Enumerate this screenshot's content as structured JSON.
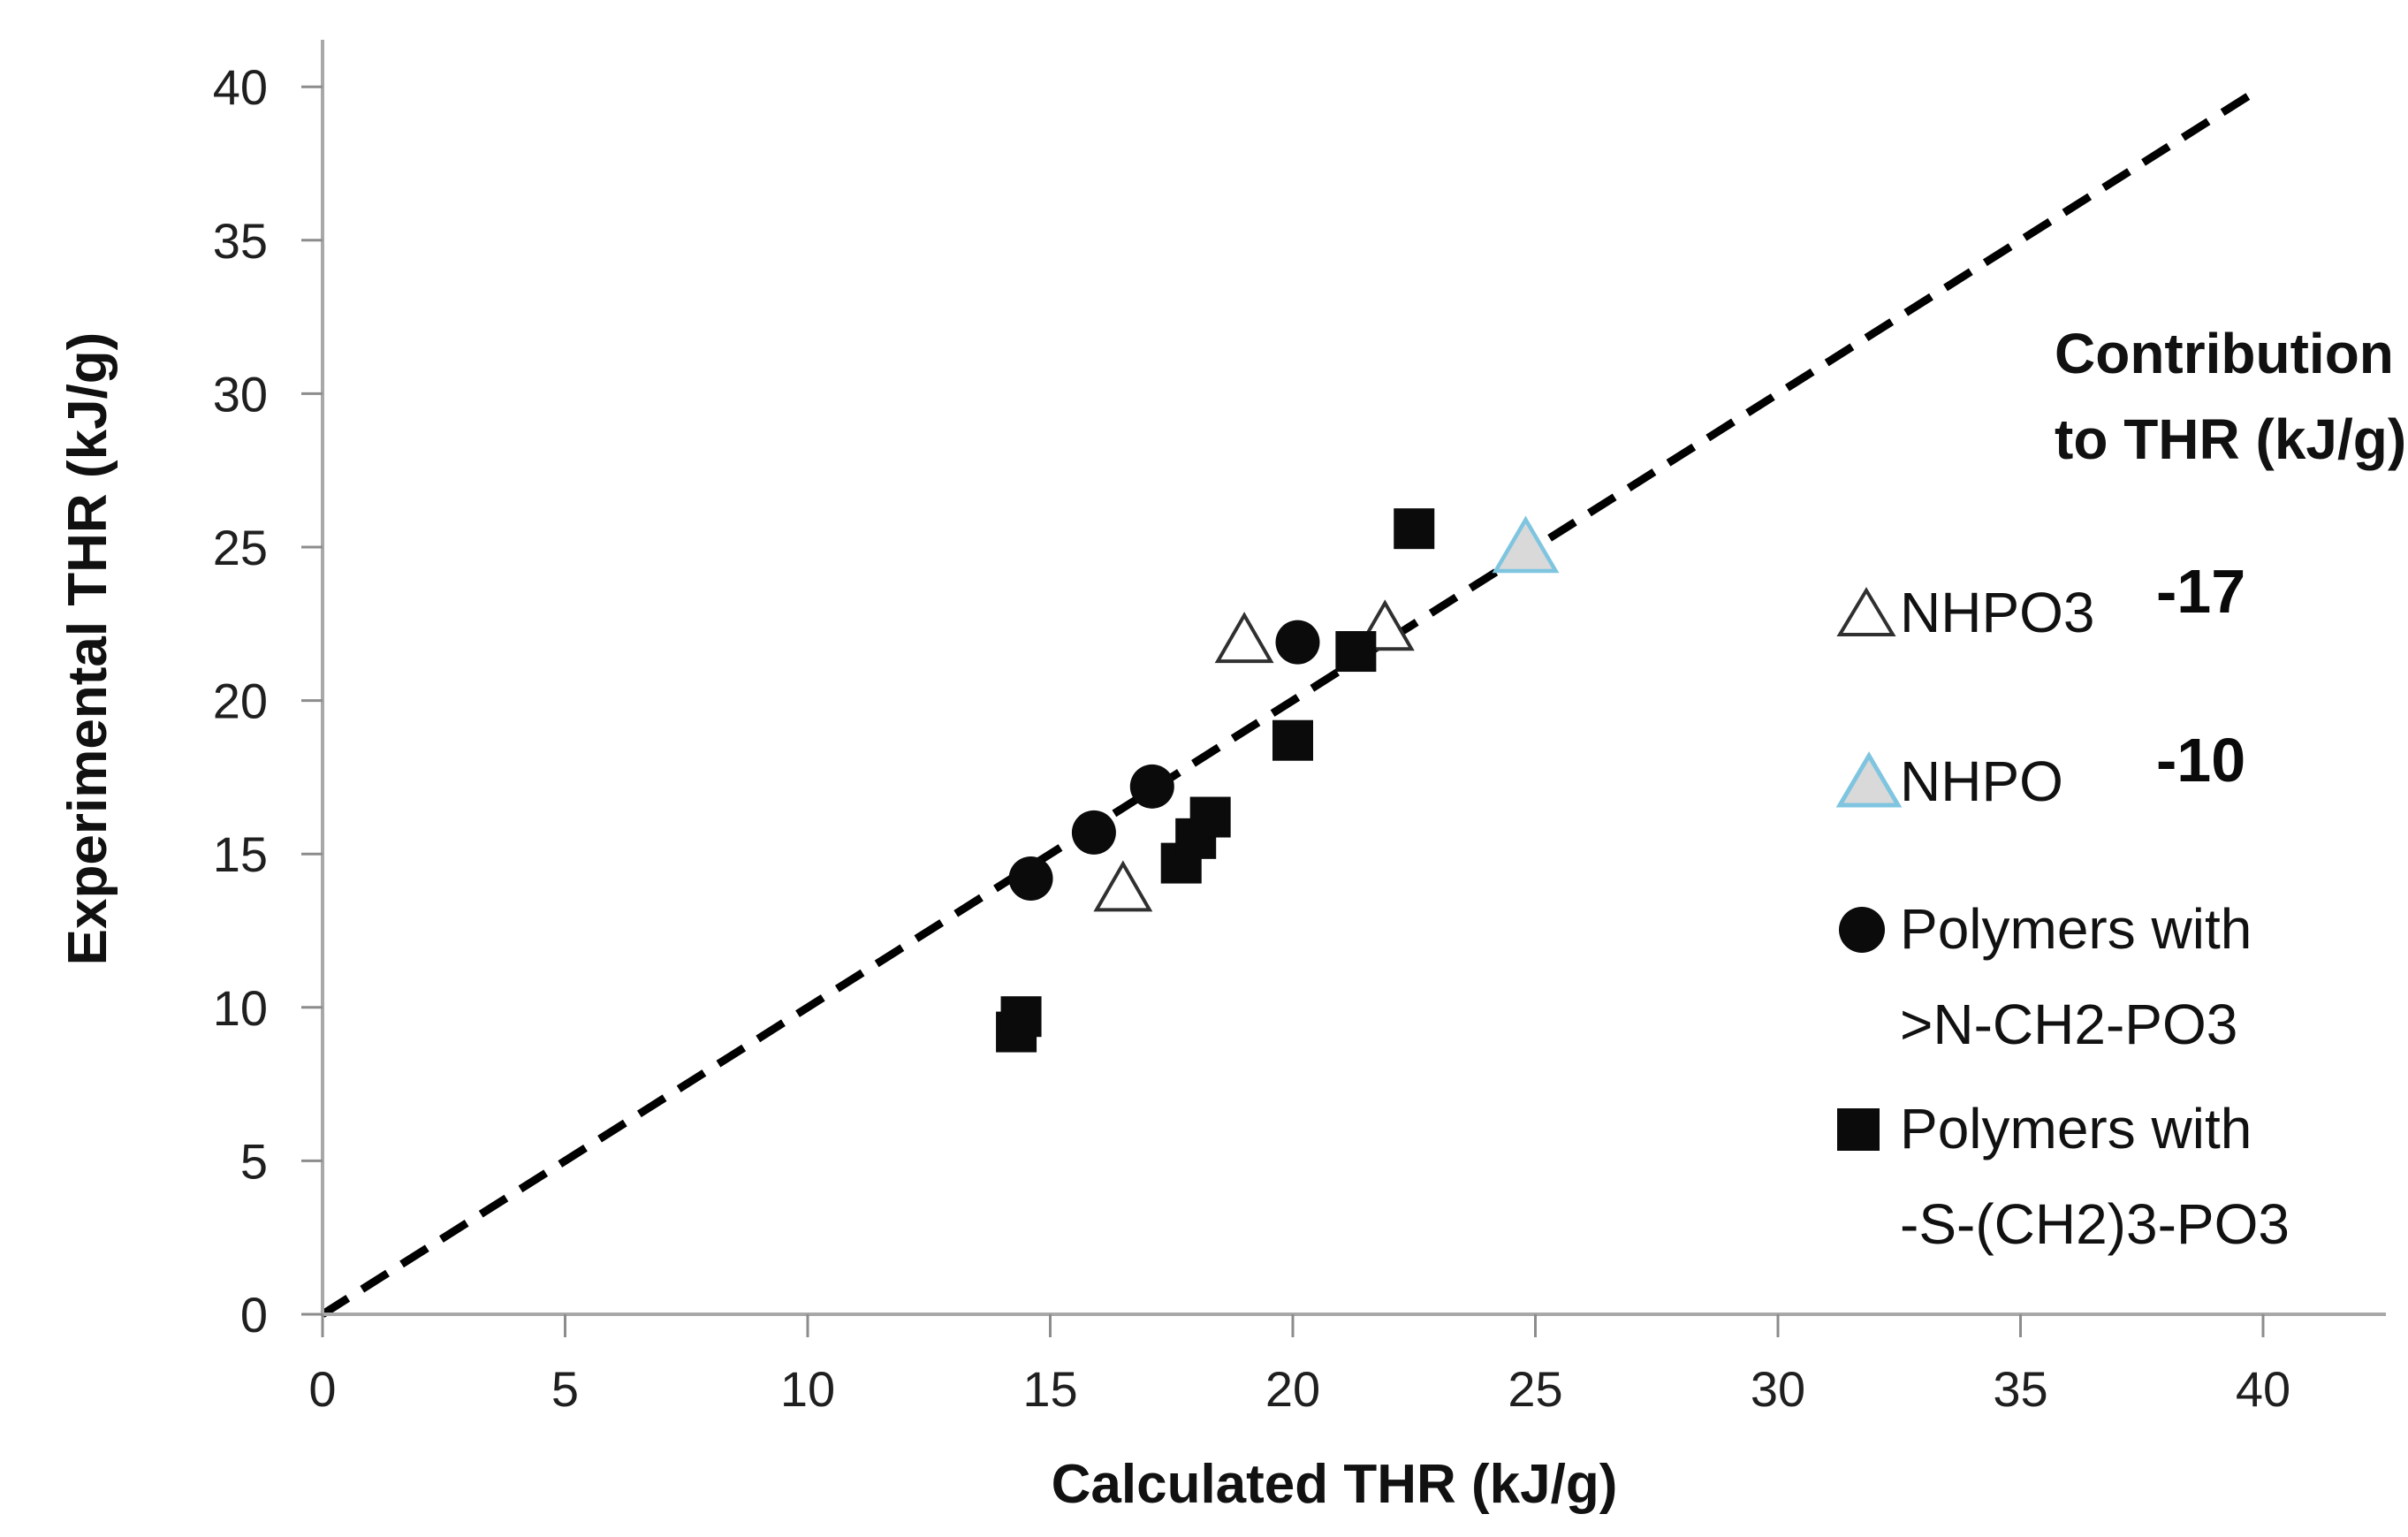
{
  "figure": {
    "x_axis_title": "Calculated THR (kJ/g)",
    "y_axis_title": "Experimental THR (kJ/g)"
  },
  "legend": {
    "header_line1": "Contribution",
    "header_line2": "to THR (kJ/g)",
    "items": [
      {
        "marker": "triangle-open",
        "label": "NHPO3",
        "value": "-17"
      },
      {
        "marker": "triangle-filled",
        "label": "NHPO",
        "value": "-10"
      },
      {
        "marker": "circle",
        "label_line1": "Polymers with",
        "label_line2": ">N-CH2-PO3"
      },
      {
        "marker": "square",
        "label_line1": "Polymers with",
        "label_line2": "-S-(CH2)3-PO3"
      }
    ]
  },
  "chart_data": {
    "type": "scatter",
    "title": "",
    "xlabel": "Calculated THR (kJ/g)",
    "ylabel": "Experimental THR (kJ/g)",
    "xlim": [
      0,
      42.5
    ],
    "ylim": [
      0,
      41.5
    ],
    "x_ticks": [
      0,
      5,
      10,
      15,
      20,
      25,
      30,
      35,
      40
    ],
    "y_ticks": [
      0,
      5,
      10,
      15,
      20,
      25,
      30,
      35,
      40
    ],
    "grid": false,
    "legend_position": "right",
    "identity_line": {
      "style": "dashed",
      "from": 0,
      "to": 39.7,
      "comment": "y = x reference line"
    },
    "series": [
      {
        "name": "NHPO3",
        "marker": "triangle-open",
        "contribution_to_THR_kJ_per_g": -17,
        "points": [
          [
            16.5,
            13.9
          ],
          [
            19.0,
            22.0
          ],
          [
            21.9,
            22.4
          ]
        ]
      },
      {
        "name": "NHPO",
        "marker": "triangle-filled",
        "contribution_to_THR_kJ_per_g": -10,
        "points": [
          [
            24.8,
            25.0
          ]
        ]
      },
      {
        "name": "Polymers with >N-CH2-PO3",
        "marker": "circle",
        "points": [
          [
            14.6,
            14.2
          ],
          [
            15.9,
            15.7
          ],
          [
            17.1,
            17.2
          ],
          [
            20.1,
            21.9
          ]
        ]
      },
      {
        "name": "Polymers with -S-(CH2)3-PO3",
        "marker": "square",
        "points": [
          [
            14.3,
            9.2
          ],
          [
            14.4,
            9.7
          ],
          [
            17.7,
            14.7
          ],
          [
            18.0,
            15.5
          ],
          [
            18.3,
            16.2
          ],
          [
            20.0,
            18.7
          ],
          [
            21.3,
            21.6
          ],
          [
            22.5,
            25.6
          ]
        ]
      }
    ]
  },
  "colors": {
    "marker_black": "#0b0b0b",
    "triangle_open_stroke": "#303030",
    "triangle_open_fill": "#ffffff",
    "nhpo_fill": "#d9d9d9",
    "nhpo_stroke": "#7fc5e0",
    "axis_line": "#a8a8a8",
    "tick": "#8c8c8c",
    "tick_label": "#1f1f1f",
    "dashed_line": "#000000",
    "background": "#ffffff"
  }
}
